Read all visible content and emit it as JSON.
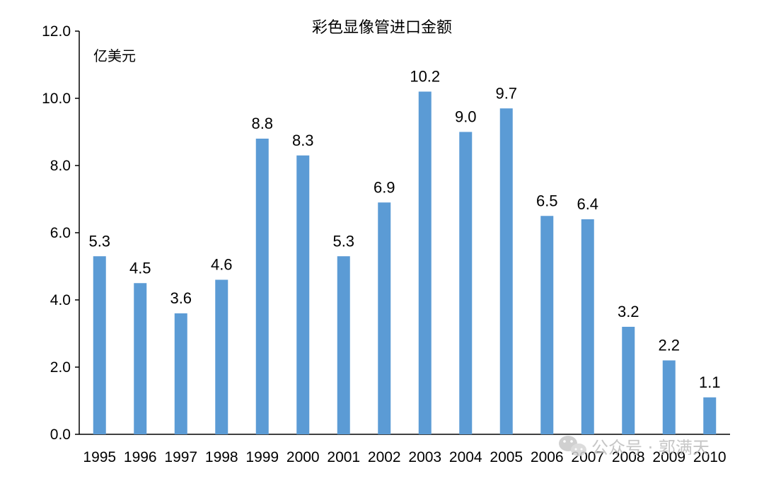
{
  "chart_data": {
    "type": "bar",
    "title": "彩色显像管进口金额",
    "unit_label": "亿美元",
    "categories": [
      "1995",
      "1996",
      "1997",
      "1998",
      "1999",
      "2000",
      "2001",
      "2002",
      "2003",
      "2004",
      "2005",
      "2006",
      "2007",
      "2008",
      "2009",
      "2010"
    ],
    "values": [
      5.3,
      4.5,
      3.6,
      4.6,
      8.8,
      8.3,
      5.3,
      6.9,
      10.2,
      9.0,
      9.7,
      6.5,
      6.4,
      3.2,
      2.2,
      1.1
    ],
    "data_labels": [
      "5.3",
      "4.5",
      "3.6",
      "4.6",
      "8.8",
      "8.3",
      "5.3",
      "6.9",
      "10.2",
      "9.0",
      "9.7",
      "6.5",
      "6.4",
      "3.2",
      "2.2",
      "1.1"
    ],
    "y_ticks": [
      "0.0",
      "2.0",
      "4.0",
      "6.0",
      "8.0",
      "10.0",
      "12.0"
    ],
    "ylim": [
      0,
      12
    ],
    "grid": false,
    "legend": "none",
    "bar_color": "#5b9bd5"
  },
  "watermark": {
    "text": "公众号 · 郭满天",
    "icon": "wechat-icon"
  }
}
